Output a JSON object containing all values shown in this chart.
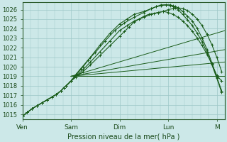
{
  "title": "Pression niveau de la mer( hPa )",
  "ylabel_values": [
    1015,
    1016,
    1017,
    1018,
    1019,
    1020,
    1021,
    1022,
    1023,
    1024,
    1025,
    1026
  ],
  "ylim": [
    1014.5,
    1026.8
  ],
  "xlim": [
    0,
    4.17
  ],
  "x_ticks": [
    0,
    1,
    2,
    3,
    4
  ],
  "x_labels": [
    "Ven",
    "Sam",
    "Dim",
    "Lun",
    "M"
  ],
  "background_color": "#cce8e8",
  "grid_color": "#9ec8c8",
  "line_color": "#1a5c1a",
  "series": [
    {
      "x": [
        0.0,
        0.1,
        0.2,
        0.3,
        0.4,
        0.5,
        0.6,
        0.7,
        0.8,
        0.85,
        0.9,
        1.0,
        1.1,
        1.25,
        1.4,
        1.6,
        1.8,
        2.0,
        2.1,
        2.2,
        2.3,
        2.4,
        2.5,
        2.6,
        2.7,
        2.8,
        2.9,
        3.0,
        3.1,
        3.2,
        3.3,
        3.4,
        3.5,
        3.6,
        3.7,
        3.8,
        3.9,
        4.0,
        4.1
      ],
      "y": [
        1014.8,
        1015.2,
        1015.6,
        1015.9,
        1016.2,
        1016.5,
        1016.8,
        1017.1,
        1017.5,
        1017.8,
        1018.0,
        1018.5,
        1018.9,
        1019.5,
        1020.2,
        1021.2,
        1022.2,
        1023.2,
        1023.7,
        1024.2,
        1024.7,
        1025.0,
        1025.3,
        1025.5,
        1025.6,
        1025.7,
        1025.8,
        1025.7,
        1025.5,
        1025.2,
        1024.8,
        1024.3,
        1023.7,
        1023.0,
        1022.2,
        1021.3,
        1020.3,
        1019.1,
        1018.5
      ],
      "marker": true
    },
    {
      "x": [
        0.0,
        0.1,
        0.2,
        0.3,
        0.4,
        0.5,
        0.6,
        0.7,
        0.8,
        0.85,
        0.9,
        1.0,
        1.1,
        1.25,
        1.4,
        1.6,
        1.8,
        2.0,
        2.15,
        2.3,
        2.5,
        2.65,
        2.8,
        2.9,
        3.0,
        3.1,
        3.2,
        3.3,
        3.4,
        3.5,
        3.6,
        3.7,
        3.8,
        3.9,
        4.0,
        4.1
      ],
      "y": [
        1014.8,
        1015.2,
        1015.6,
        1015.9,
        1016.2,
        1016.5,
        1016.8,
        1017.1,
        1017.5,
        1017.8,
        1018.0,
        1018.5,
        1019.0,
        1019.7,
        1020.5,
        1021.6,
        1022.7,
        1023.8,
        1024.3,
        1024.8,
        1025.2,
        1025.5,
        1025.7,
        1025.8,
        1026.0,
        1026.1,
        1026.2,
        1026.1,
        1025.9,
        1025.5,
        1025.0,
        1024.3,
        1023.4,
        1022.3,
        1021.0,
        1019.5
      ],
      "marker": true
    },
    {
      "x": [
        0.0,
        0.1,
        0.2,
        0.3,
        0.4,
        0.5,
        0.6,
        0.7,
        0.8,
        0.85,
        0.9,
        1.0,
        1.1,
        1.25,
        1.4,
        1.6,
        1.8,
        2.0,
        2.15,
        2.3,
        2.5,
        2.65,
        2.75,
        2.85,
        2.95,
        3.05,
        3.1,
        3.15,
        3.2,
        3.3,
        3.4,
        3.5,
        3.6,
        3.7,
        3.8,
        3.9,
        4.0,
        4.1
      ],
      "y": [
        1014.8,
        1015.2,
        1015.6,
        1015.9,
        1016.2,
        1016.5,
        1016.8,
        1017.1,
        1017.5,
        1017.8,
        1018.0,
        1018.5,
        1019.1,
        1020.0,
        1021.0,
        1022.3,
        1023.5,
        1024.5,
        1025.0,
        1025.5,
        1025.8,
        1026.1,
        1026.3,
        1026.4,
        1026.5,
        1026.5,
        1026.4,
        1026.3,
        1026.2,
        1025.8,
        1025.3,
        1024.8,
        1024.0,
        1023.0,
        1021.8,
        1020.4,
        1018.9,
        1017.5
      ],
      "marker": true
    },
    {
      "x": [
        0.0,
        0.1,
        0.2,
        0.3,
        0.4,
        0.5,
        0.6,
        0.7,
        0.8,
        0.85,
        0.9,
        1.0,
        1.1,
        1.2,
        1.35,
        1.5,
        1.7,
        1.9,
        2.1,
        2.3,
        2.5,
        2.65,
        2.75,
        2.85,
        2.95,
        3.05,
        3.1,
        3.15,
        3.2,
        3.3,
        3.4,
        3.5,
        3.6,
        3.7,
        3.8,
        3.9,
        4.0,
        4.1
      ],
      "y": [
        1014.8,
        1015.2,
        1015.6,
        1015.9,
        1016.2,
        1016.5,
        1016.8,
        1017.1,
        1017.5,
        1017.8,
        1018.0,
        1018.5,
        1019.2,
        1019.8,
        1020.7,
        1021.5,
        1022.7,
        1023.8,
        1024.6,
        1025.2,
        1025.7,
        1026.1,
        1026.3,
        1026.5,
        1026.5,
        1026.4,
        1026.3,
        1026.2,
        1026.0,
        1025.5,
        1024.9,
        1024.3,
        1023.5,
        1022.6,
        1021.5,
        1020.2,
        1018.8,
        1017.3
      ],
      "marker": true
    },
    {
      "x": [
        1.0,
        4.17
      ],
      "y": [
        1019.0,
        1019.0
      ],
      "marker": false
    },
    {
      "x": [
        1.0,
        4.17
      ],
      "y": [
        1019.0,
        1020.5
      ],
      "marker": false
    },
    {
      "x": [
        1.0,
        4.17
      ],
      "y": [
        1019.0,
        1021.8
      ],
      "marker": false
    },
    {
      "x": [
        1.0,
        4.17
      ],
      "y": [
        1019.0,
        1023.8
      ],
      "marker": false
    }
  ]
}
